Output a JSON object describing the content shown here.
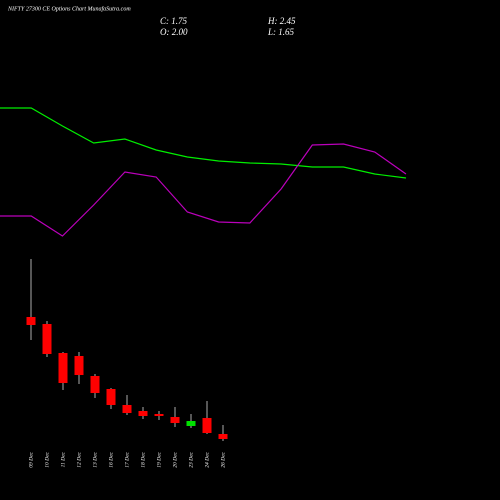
{
  "chart_data": [
    {
      "type": "candlestick",
      "title": "NIFTY 27300  CE Options  Chart MunafaSutra.com",
      "info": {
        "close": "C: 1.75",
        "high": "H: 2.45",
        "open": "O: 2.00",
        "low": "L: 1.65"
      },
      "categories": [
        "09 Dec",
        "10 Dec",
        "11 Dec",
        "12 Dec",
        "13 Dec",
        "16 Dec",
        "17 Dec",
        "18 Dec",
        "19 Dec",
        "20 Dec",
        "23 Dec",
        "24 Dec",
        "26 Dec"
      ],
      "open": [
        7.85,
        7.5,
        6.05,
        5.9,
        4.9,
        4.25,
        3.45,
        3.15,
        3.0,
        2.85,
        2.4,
        2.8,
        2.0
      ],
      "high": [
        10.75,
        7.65,
        6.1,
        6.1,
        5.0,
        4.3,
        3.95,
        3.35,
        3.15,
        3.35,
        3.0,
        3.65,
        2.45
      ],
      "low": [
        6.7,
        5.85,
        4.2,
        4.5,
        3.8,
        3.25,
        2.95,
        2.75,
        2.7,
        2.35,
        2.3,
        2.0,
        1.65
      ],
      "close": [
        7.45,
        6.0,
        4.55,
        4.95,
        4.05,
        3.45,
        3.05,
        2.9,
        2.9,
        2.55,
        2.65,
        2.05,
        1.75
      ],
      "up_color": "#00e000",
      "down_color": "#ff0000",
      "wick_color": "#d8d8d8",
      "ylim": [
        0,
        12
      ]
    },
    {
      "type": "line",
      "series": [
        {
          "color": "#00ee00",
          "values": [
            152,
            152,
            134,
            117,
            121,
            110,
            103,
            99,
            97,
            96,
            93,
            93,
            86,
            82
          ]
        },
        {
          "color": "#bb00bb",
          "values": [
            44,
            44,
            24,
            55,
            88,
            83,
            48,
            38,
            37,
            71,
            115,
            116,
            108,
            86
          ]
        }
      ],
      "ylim": [
        0,
        160
      ]
    }
  ]
}
